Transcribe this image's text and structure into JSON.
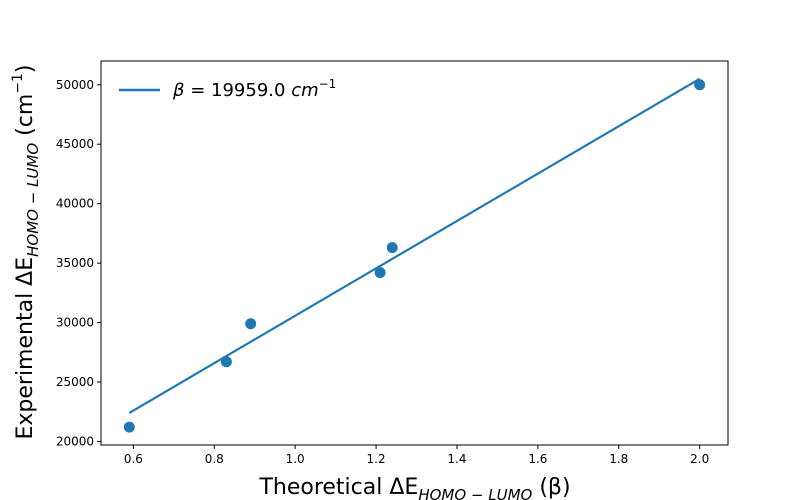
{
  "chart_data": {
    "type": "scatter",
    "xlabel": {
      "main": "Theoretical ",
      "delta": "ΔE",
      "sub": "HOMO − LUMO",
      "unit": " (β)"
    },
    "ylabel": {
      "main": "Experimental  ",
      "delta": "ΔE",
      "sub": "HOMO − LUMO",
      "unit_open": " (cm",
      "unit_sup": "−1",
      "unit_close": ")"
    },
    "xlim": [
      0.52,
      2.07
    ],
    "ylim": [
      19700,
      52000
    ],
    "xticks": [
      0.6,
      0.8,
      1.0,
      1.2,
      1.4,
      1.6,
      1.8,
      2.0
    ],
    "xtick_labels": [
      "0.6",
      "0.8",
      "1.0",
      "1.2",
      "1.4",
      "1.6",
      "1.8",
      "2.0"
    ],
    "yticks": [
      20000,
      25000,
      30000,
      35000,
      40000,
      45000,
      50000
    ],
    "ytick_labels": [
      "20000",
      "25000",
      "30000",
      "35000",
      "40000",
      "45000",
      "50000"
    ],
    "points": {
      "x": [
        0.59,
        0.83,
        0.89,
        1.21,
        1.24,
        2.0
      ],
      "y": [
        21200,
        26700,
        29900,
        34200,
        36300,
        50000
      ]
    },
    "fit_line": {
      "name": "β = 19959.0 cm⁻¹",
      "x": [
        0.59,
        2.0
      ],
      "y": [
        22400,
        50500
      ]
    },
    "legend": {
      "position": "top-left",
      "label_beta": "β",
      "label_value": " = 19959.0 ",
      "label_unit": "cm",
      "label_sup": "−1"
    },
    "grid": false,
    "color": "#1f77b4"
  }
}
